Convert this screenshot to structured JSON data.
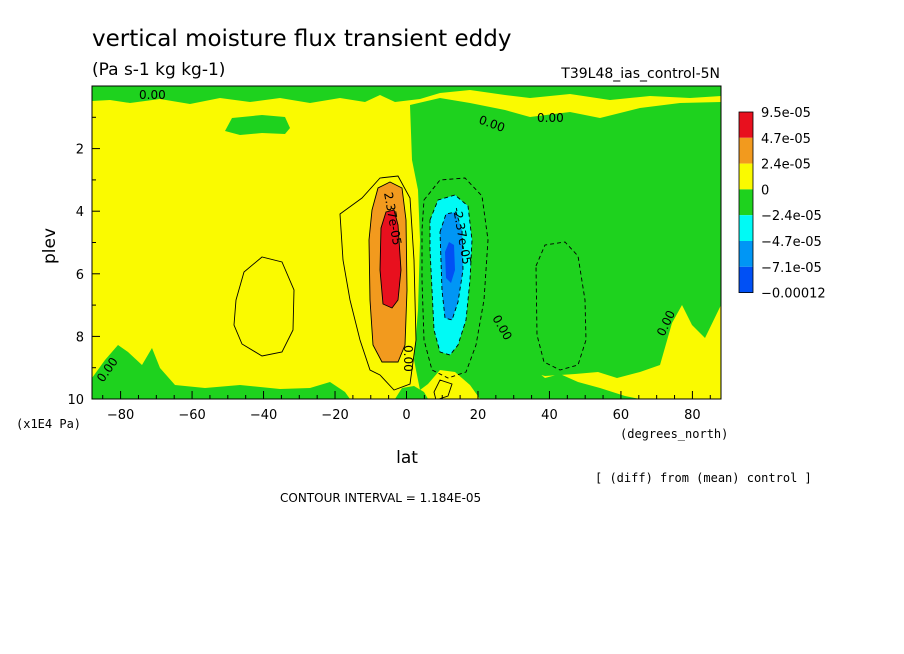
{
  "chart_data": {
    "type": "contour",
    "title": "vertical moisture flux transient eddy",
    "subtitle": "(Pa s-1 kg kg-1)",
    "run_label": "T39L48_ias_control-5N",
    "xlabel": "lat",
    "x_units": "(degrees_north)",
    "ylabel": "plev",
    "y_units": "(x1E4 Pa)",
    "xlim": [
      -88,
      88
    ],
    "ylim": [
      10,
      0
    ],
    "x_ticks": [
      -80,
      -60,
      -40,
      -20,
      0,
      20,
      40,
      60,
      80
    ],
    "y_ticks": [
      2,
      4,
      6,
      8,
      10
    ],
    "legend_levels": [
      "9.5e-05",
      "4.7e-05",
      "2.4e-05",
      "0",
      "-2.4e-05",
      "-4.7e-05",
      "-7.1e-05",
      "-0.00012"
    ],
    "legend_colors": [
      "#e8101e",
      "#f29a1e",
      "#fafa00",
      "#1ed21e",
      "#00faf5",
      "#0096f5",
      "#0050f5"
    ],
    "colors": {
      "red": "#e8101e",
      "orange": "#f29a1e",
      "yellow": "#fafa00",
      "green": "#1ed21e",
      "cyan": "#00faf5",
      "blue": "#0096f5",
      "dblue": "#0050f5"
    },
    "contour_labels": [
      "0.00",
      "0.00",
      "0.00",
      "0.00",
      "0.00",
      "0.00",
      "0.00",
      "2.37e-05",
      "-2.37e-05"
    ],
    "note": "[ (diff) from (mean) control ]",
    "contour_interval": "CONTOUR INTERVAL = 1.184E-05"
  }
}
